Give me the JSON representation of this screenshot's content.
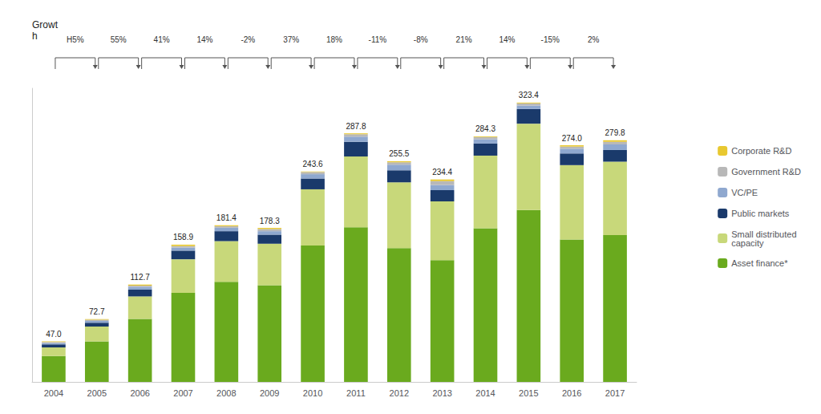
{
  "chart_data": {
    "type": "bar",
    "stacked": true,
    "categories": [
      "2004",
      "2005",
      "2006",
      "2007",
      "2008",
      "2009",
      "2010",
      "2011",
      "2012",
      "2013",
      "2014",
      "2015",
      "2016",
      "2017"
    ],
    "series": [
      {
        "name": "Asset finance*",
        "color": "#6aaa1e",
        "values": [
          30.0,
          47.0,
          73.0,
          103.0,
          116.0,
          112.0,
          158.0,
          179.0,
          155.0,
          141.0,
          178.0,
          199.0,
          165.0,
          170.0
        ]
      },
      {
        "name": "Small distributed\ncapacity",
        "color": "#c8d87a",
        "values": [
          10.0,
          17.0,
          26.0,
          39.0,
          47.0,
          48.0,
          65.0,
          82.0,
          76.0,
          68.0,
          84.0,
          100.0,
          86.0,
          85.0
        ]
      },
      {
        "name": "Public markets",
        "color": "#1a3a6b",
        "values": [
          3.5,
          4.5,
          8.0,
          10.0,
          11.5,
          10.5,
          12.5,
          17.0,
          14.0,
          13.0,
          14.0,
          17.0,
          13.5,
          13.5
        ]
      },
      {
        "name": "VC/PE",
        "color": "#8fa8cf",
        "values": [
          1.5,
          2.0,
          3.0,
          3.5,
          4.0,
          4.0,
          5.0,
          6.0,
          6.5,
          6.0,
          5.0,
          4.0,
          5.5,
          6.5
        ]
      },
      {
        "name": "Government R&D",
        "color": "#b8b8b8",
        "values": [
          1.2,
          1.4,
          1.5,
          1.8,
          1.8,
          2.5,
          2.5,
          2.8,
          2.8,
          4.5,
          2.5,
          2.5,
          2.5,
          3.0
        ]
      },
      {
        "name": "Corporate R&D",
        "color": "#e8c830",
        "values": [
          0.8,
          0.8,
          1.2,
          1.6,
          1.1,
          1.3,
          0.6,
          1.0,
          1.2,
          1.9,
          0.8,
          0.9,
          1.5,
          1.8
        ]
      }
    ],
    "totals": [
      47.0,
      72.7,
      112.7,
      158.9,
      181.4,
      178.3,
      243.6,
      287.8,
      255.5,
      234.4,
      284.3,
      323.4,
      274.0,
      279.8
    ],
    "total_labels": [
      "47.0",
      "72.7",
      "112.7",
      "158.9",
      "181.4",
      "178.3",
      "243.6",
      "287.8",
      "255.5",
      "234.4",
      "284.3",
      "323.4",
      "274.0",
      "279.8"
    ],
    "growth_label": "Growt\nh",
    "growth": [
      "H5%",
      "55%",
      "41%",
      "14%",
      "-2%",
      "37%",
      "18%",
      "-11%",
      "-8%",
      "21%",
      "14%",
      "-15%",
      "2%"
    ],
    "ylim": [
      0,
      340
    ],
    "tick_labels": "x",
    "grid": false,
    "legend": "right"
  }
}
